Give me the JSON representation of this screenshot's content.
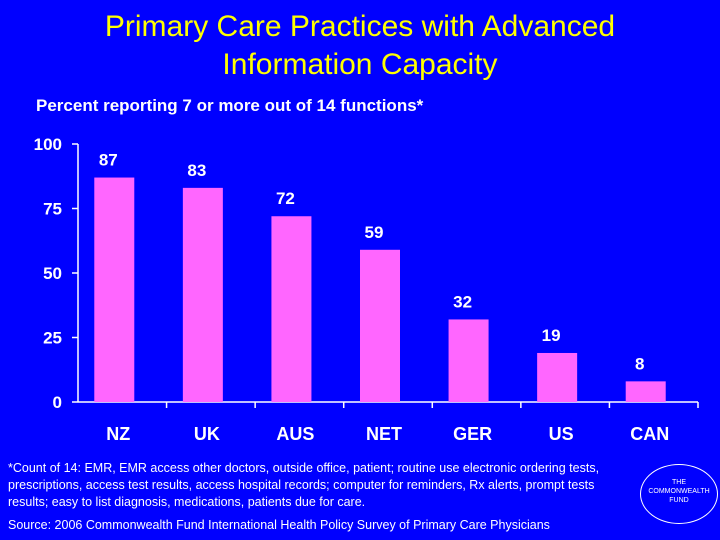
{
  "title_line1": "Primary Care Practices with Advanced",
  "title_line2": "Information Capacity",
  "subtitle": "Percent reporting 7 or more out of 14 functions*",
  "footnote": "*Count of 14: EMR, EMR access other doctors, outside office, patient; routine use electronic ordering  tests, prescriptions, access test results, access hospital records; computer for  reminders, Rx alerts, prompt tests results; easy to list diagnosis, medications, patients due for care.",
  "source": "Source: 2006 Commonwealth Fund International Health Policy Survey of Primary Care Physicians",
  "logo": {
    "line1": "THE",
    "line2": "COMMONWEALTH",
    "line3": "FUND"
  },
  "colors": {
    "background": "#0000ff",
    "title": "#ffff00",
    "bar": "#ff66ff",
    "text": "#ffffff"
  },
  "chart_data": {
    "type": "bar",
    "title": "Primary Care Practices with Advanced Information Capacity",
    "subtitle": "Percent reporting 7 or more out of 14 functions*",
    "categories": [
      "NZ",
      "UK",
      "AUS",
      "NET",
      "GER",
      "US",
      "CAN"
    ],
    "values": [
      87,
      83,
      72,
      59,
      32,
      19,
      8
    ],
    "yticks": [
      0,
      25,
      50,
      75,
      100
    ],
    "ylim": [
      0,
      100
    ],
    "xlabel": "",
    "ylabel": "",
    "grid": false
  }
}
